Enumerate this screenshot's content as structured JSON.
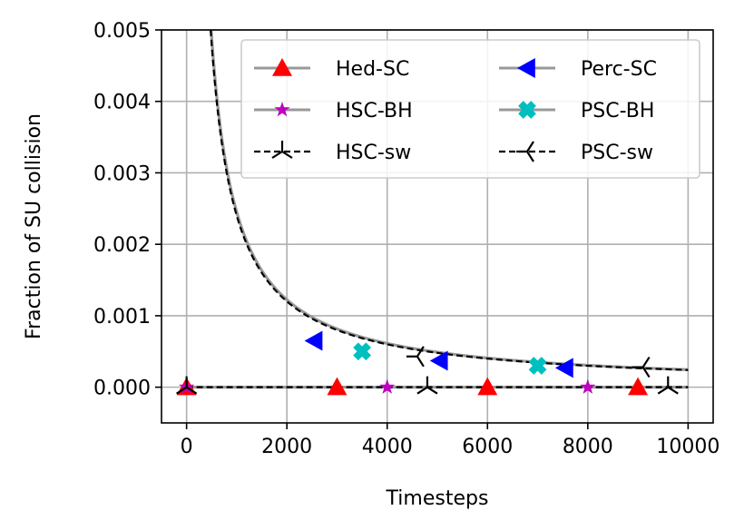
{
  "chart_data": {
    "type": "line",
    "title": "",
    "xlabel": "Timesteps",
    "ylabel": "Fraction of SU collision",
    "xlim": [
      -500,
      10500
    ],
    "ylim": [
      -0.0005,
      0.005
    ],
    "x_ticks": [
      0,
      2000,
      4000,
      6000,
      8000,
      10000
    ],
    "x_tick_labels": [
      "0",
      "2000",
      "4000",
      "6000",
      "8000",
      "10000"
    ],
    "y_ticks": [
      0,
      0.001,
      0.002,
      0.003,
      0.004,
      0.005
    ],
    "y_tick_labels": [
      "0.000",
      "0.001",
      "0.002",
      "0.003",
      "0.004",
      "0.005"
    ],
    "grid": true,
    "legend_position": "top-right",
    "legend_columns": 2,
    "series": [
      {
        "name": "Hed-SC",
        "marker": "triangle-up",
        "color": "#ff0000",
        "line_color": "#999999",
        "line_style": "solid",
        "curve": "zero",
        "marker_x": [
          0,
          3000,
          6000,
          9000
        ],
        "marker_y": [
          0,
          0,
          0,
          0
        ]
      },
      {
        "name": "HSC-BH",
        "marker": "star",
        "color": "#bf00bf",
        "line_color": "#999999",
        "line_style": "solid",
        "curve": "zero",
        "marker_x": [
          0,
          4000,
          8000
        ],
        "marker_y": [
          0,
          0,
          0
        ]
      },
      {
        "name": "HSC-sw",
        "marker": "tri-down",
        "color": "#000000",
        "line_color": "#000000",
        "line_style": "dashed",
        "curve": "zero",
        "marker_x": [
          0,
          4800,
          9600
        ],
        "marker_y": [
          0,
          0,
          0
        ]
      },
      {
        "name": "Perc-SC",
        "marker": "triangle-left",
        "color": "#0000ff",
        "line_color": "#999999",
        "line_style": "solid",
        "curve": "decay",
        "curve_coeff": 2.45,
        "marker_x": [
          2550,
          5050,
          7550
        ],
        "marker_y": [
          0.00065,
          0.00037,
          0.00027
        ]
      },
      {
        "name": "PSC-BH",
        "marker": "x-filled",
        "color": "#00bfbf",
        "line_color": "#999999",
        "line_style": "solid",
        "curve": "decay",
        "curve_coeff": 2.45,
        "marker_x": [
          3500,
          7000
        ],
        "marker_y": [
          0.0005,
          0.0003
        ]
      },
      {
        "name": "PSC-sw",
        "marker": "tri-left",
        "color": "#000000",
        "line_color": "#000000",
        "line_style": "dashed",
        "curve": "decay",
        "curve_coeff": 2.4,
        "marker_x": [
          4600,
          9100
        ],
        "marker_y": [
          0.00043,
          0.00028
        ]
      }
    ]
  }
}
